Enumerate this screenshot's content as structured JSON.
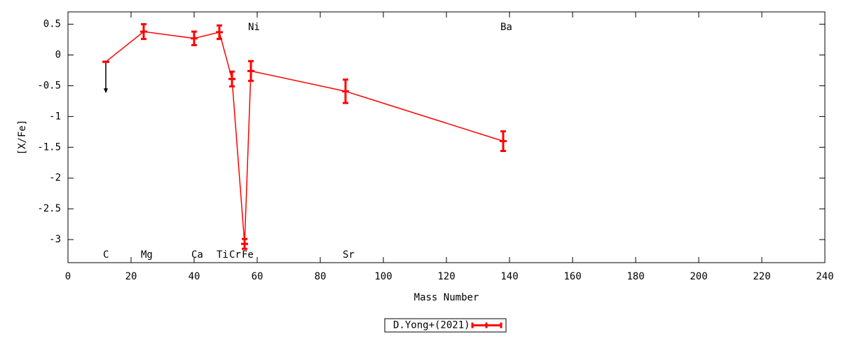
{
  "chart_data": {
    "type": "line",
    "xlabel": "Mass Number",
    "ylabel": "[X/Fe]",
    "x": [
      12,
      24,
      40,
      48,
      52,
      56,
      58,
      88,
      138
    ],
    "series": [
      {
        "name": "D.Yong+(2021)",
        "color": "#ff0000",
        "values": [
          -0.11,
          0.38,
          0.27,
          0.37,
          -0.39,
          -3.07,
          -0.26,
          -0.59,
          -1.4
        ],
        "errors": [
          0,
          0.12,
          0.11,
          0.11,
          0.12,
          0.08,
          0.16,
          0.19,
          0.16
        ],
        "upper_limit": [
          true,
          false,
          false,
          false,
          false,
          false,
          false,
          false,
          false
        ]
      }
    ],
    "element_labels": [
      {
        "text": "C",
        "x": 12,
        "y": -3.25
      },
      {
        "text": "Mg",
        "x": 24,
        "y": -3.25
      },
      {
        "text": "Ca",
        "x": 40,
        "y": -3.25
      },
      {
        "text": "Ti",
        "x": 48,
        "y": -3.25
      },
      {
        "text": "Cr",
        "x": 52,
        "y": -3.25
      },
      {
        "text": "Fe",
        "x": 56,
        "y": -3.25
      },
      {
        "text": "Ni",
        "x": 58,
        "y": 0.45
      },
      {
        "text": "Sr",
        "x": 88,
        "y": -3.25
      },
      {
        "text": "Ba",
        "x": 138,
        "y": 0.45
      }
    ],
    "xlim": [
      0,
      240
    ],
    "xticks": [
      0,
      20,
      40,
      60,
      80,
      100,
      120,
      140,
      160,
      180,
      200,
      220,
      240
    ],
    "ylim": [
      -3.375,
      0.7
    ],
    "yticks": [
      0.5,
      0,
      -0.5,
      -1,
      -1.5,
      -2,
      -2.5,
      -3
    ],
    "grid": false,
    "legend": "bottom"
  }
}
